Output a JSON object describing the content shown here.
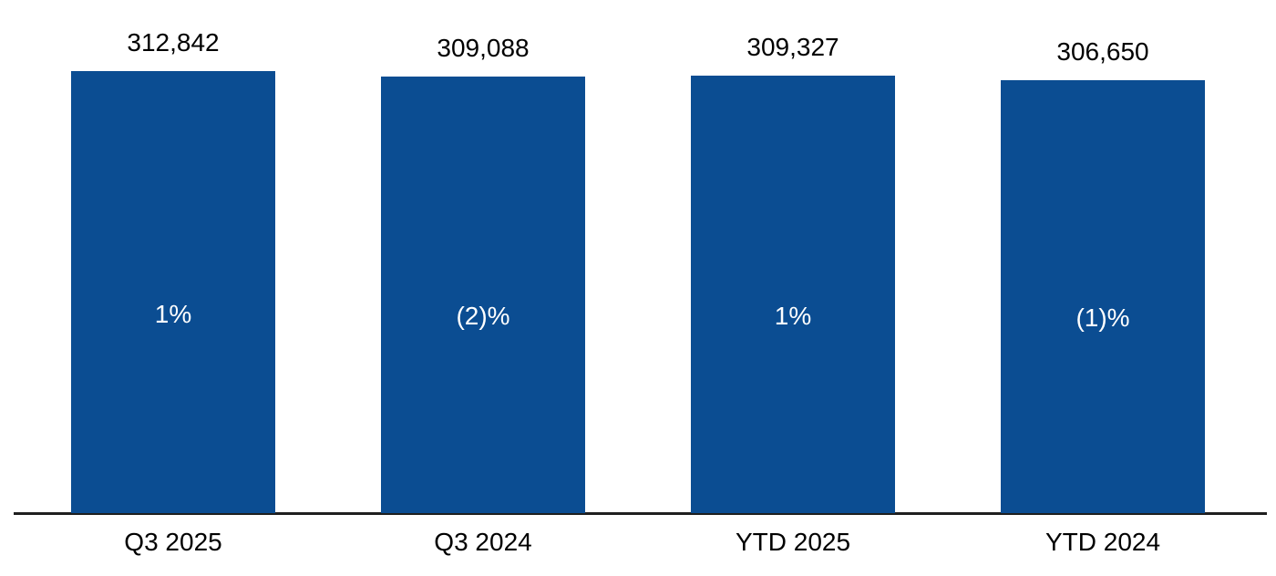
{
  "chart_data": {
    "type": "bar",
    "categories": [
      "Q3 2025",
      "Q3 2024",
      "YTD 2025",
      "YTD 2024"
    ],
    "values": [
      312842,
      309088,
      309327,
      306650
    ],
    "value_labels": [
      "312,842",
      "309,088",
      "309,327",
      "306,650"
    ],
    "bar_labels": [
      "1%",
      "(2)%",
      "1%",
      "(1)%"
    ],
    "title": "",
    "xlabel": "",
    "ylabel": "",
    "ylim": [
      0,
      312842
    ],
    "grid": false,
    "legend_position": "none",
    "colors": {
      "bar_fill": "#0B4D92",
      "bar_label_text": "#FFFFFF",
      "value_label_text": "#000000",
      "category_label_text": "#000000",
      "axis_line": "#1F1F1F",
      "background": "#FFFFFF"
    }
  }
}
